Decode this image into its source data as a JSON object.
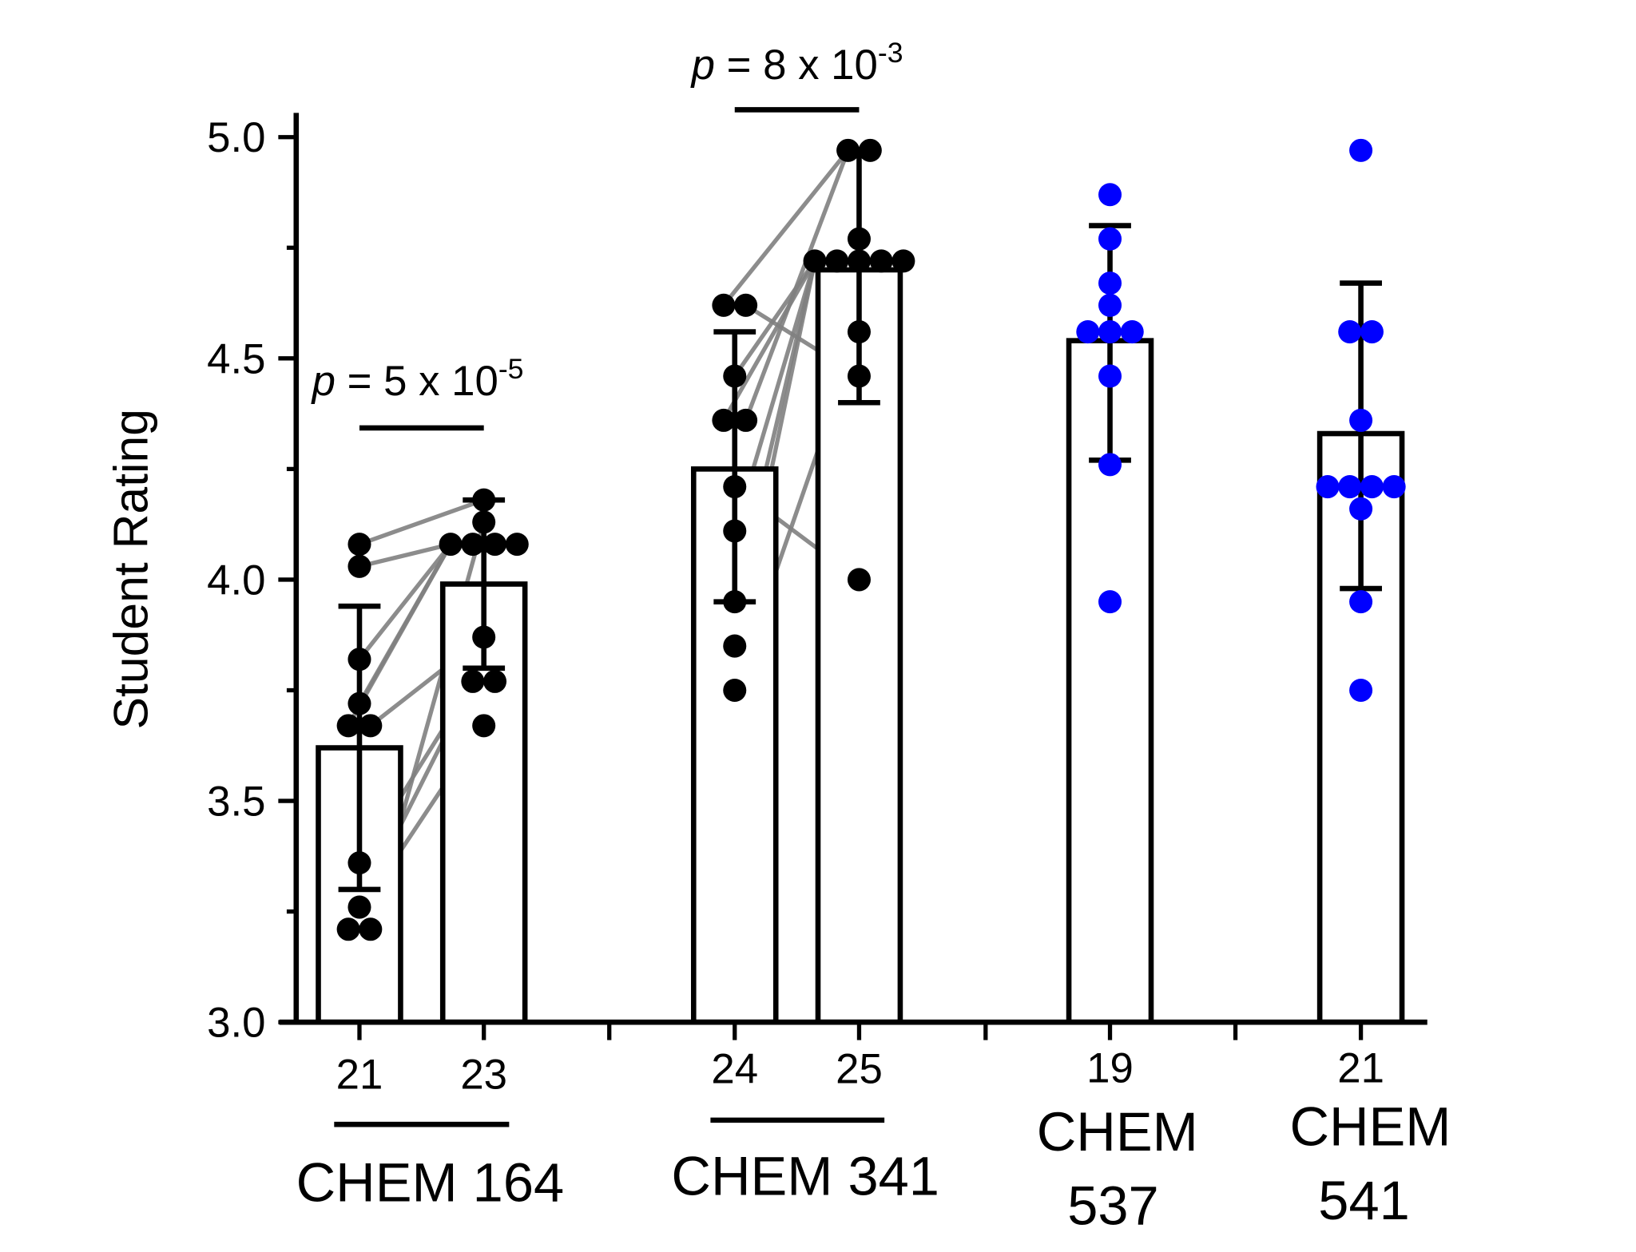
{
  "chart_data": {
    "type": "bar",
    "ylabel": "Student Rating",
    "ylim": [
      3.0,
      5.0
    ],
    "yticks": [
      "3.0",
      "3.5",
      "4.0",
      "4.5",
      "5.0"
    ],
    "ytick_values": [
      3.0,
      3.5,
      4.0,
      4.5,
      5.0
    ],
    "colors": {
      "paired": "#000000",
      "unpaired": "#0000ff",
      "pair_line": "#808080"
    },
    "bars": [
      {
        "n": "21",
        "mean": 3.62,
        "err_hi": 3.94,
        "err_lo": 3.3,
        "color": "#000000",
        "points": [
          4.08,
          4.03,
          3.82,
          3.72,
          3.67,
          3.67,
          3.36,
          3.26,
          3.21,
          3.21
        ]
      },
      {
        "n": "23",
        "mean": 3.99,
        "err_hi": 4.18,
        "err_lo": 3.8,
        "color": "#000000",
        "points": [
          4.18,
          4.13,
          4.08,
          4.08,
          4.08,
          4.08,
          3.87,
          3.77,
          3.77,
          3.67
        ]
      },
      {
        "n": "24",
        "mean": 4.25,
        "err_hi": 4.56,
        "err_lo": 3.95,
        "color": "#000000",
        "points": [
          4.62,
          4.62,
          4.46,
          4.36,
          4.36,
          4.21,
          4.11,
          3.95,
          3.85,
          3.75
        ]
      },
      {
        "n": "25",
        "mean": 4.7,
        "err_hi": 4.97,
        "err_lo": 4.4,
        "color": "#000000",
        "points": [
          4.97,
          4.97,
          4.77,
          4.72,
          4.72,
          4.72,
          4.72,
          4.72,
          4.56,
          4.46,
          4.0
        ]
      },
      {
        "n": "19",
        "mean": 4.54,
        "err_hi": 4.8,
        "err_lo": 4.27,
        "color": "#0000ff",
        "points": [
          4.87,
          4.77,
          4.67,
          4.62,
          4.56,
          4.56,
          4.56,
          4.46,
          4.26,
          3.95
        ]
      },
      {
        "n": "21",
        "mean": 4.33,
        "err_hi": 4.67,
        "err_lo": 3.98,
        "color": "#0000ff",
        "points": [
          4.97,
          4.56,
          4.56,
          4.36,
          4.21,
          4.21,
          4.21,
          4.21,
          4.16,
          3.95,
          3.75
        ]
      }
    ],
    "pairs": [
      {
        "from_bar": 0,
        "to_bar": 1,
        "values": [
          [
            4.08,
            4.18
          ],
          [
            4.03,
            4.08
          ],
          [
            3.82,
            4.08
          ],
          [
            3.72,
            4.08
          ],
          [
            3.67,
            4.08
          ],
          [
            3.67,
            3.87
          ],
          [
            3.36,
            3.77
          ],
          [
            3.26,
            3.77
          ],
          [
            3.21,
            3.67
          ],
          [
            3.21,
            4.13
          ]
        ]
      },
      {
        "from_bar": 2,
        "to_bar": 3,
        "values": [
          [
            4.62,
            4.97
          ],
          [
            4.62,
            4.46
          ],
          [
            4.46,
            4.72
          ],
          [
            4.36,
            4.72
          ],
          [
            4.36,
            4.97
          ],
          [
            4.21,
            4.0
          ],
          [
            4.11,
            4.72
          ],
          [
            3.95,
            4.72
          ],
          [
            3.85,
            4.72
          ],
          [
            3.75,
            4.56
          ]
        ]
      }
    ],
    "groups": [
      {
        "label": "CHEM 164"
      },
      {
        "label": "CHEM 341"
      },
      {
        "label_line1": "CHEM",
        "label_line2": "537"
      },
      {
        "label_line1": "CHEM",
        "label_line2": "541"
      }
    ],
    "annotations": [
      {
        "p_symbol": "p",
        "text": " = 5 x 10",
        "exponent": "-5"
      },
      {
        "p_symbol": "p",
        "text": " = 8 x 10",
        "exponent": "-3"
      }
    ]
  }
}
